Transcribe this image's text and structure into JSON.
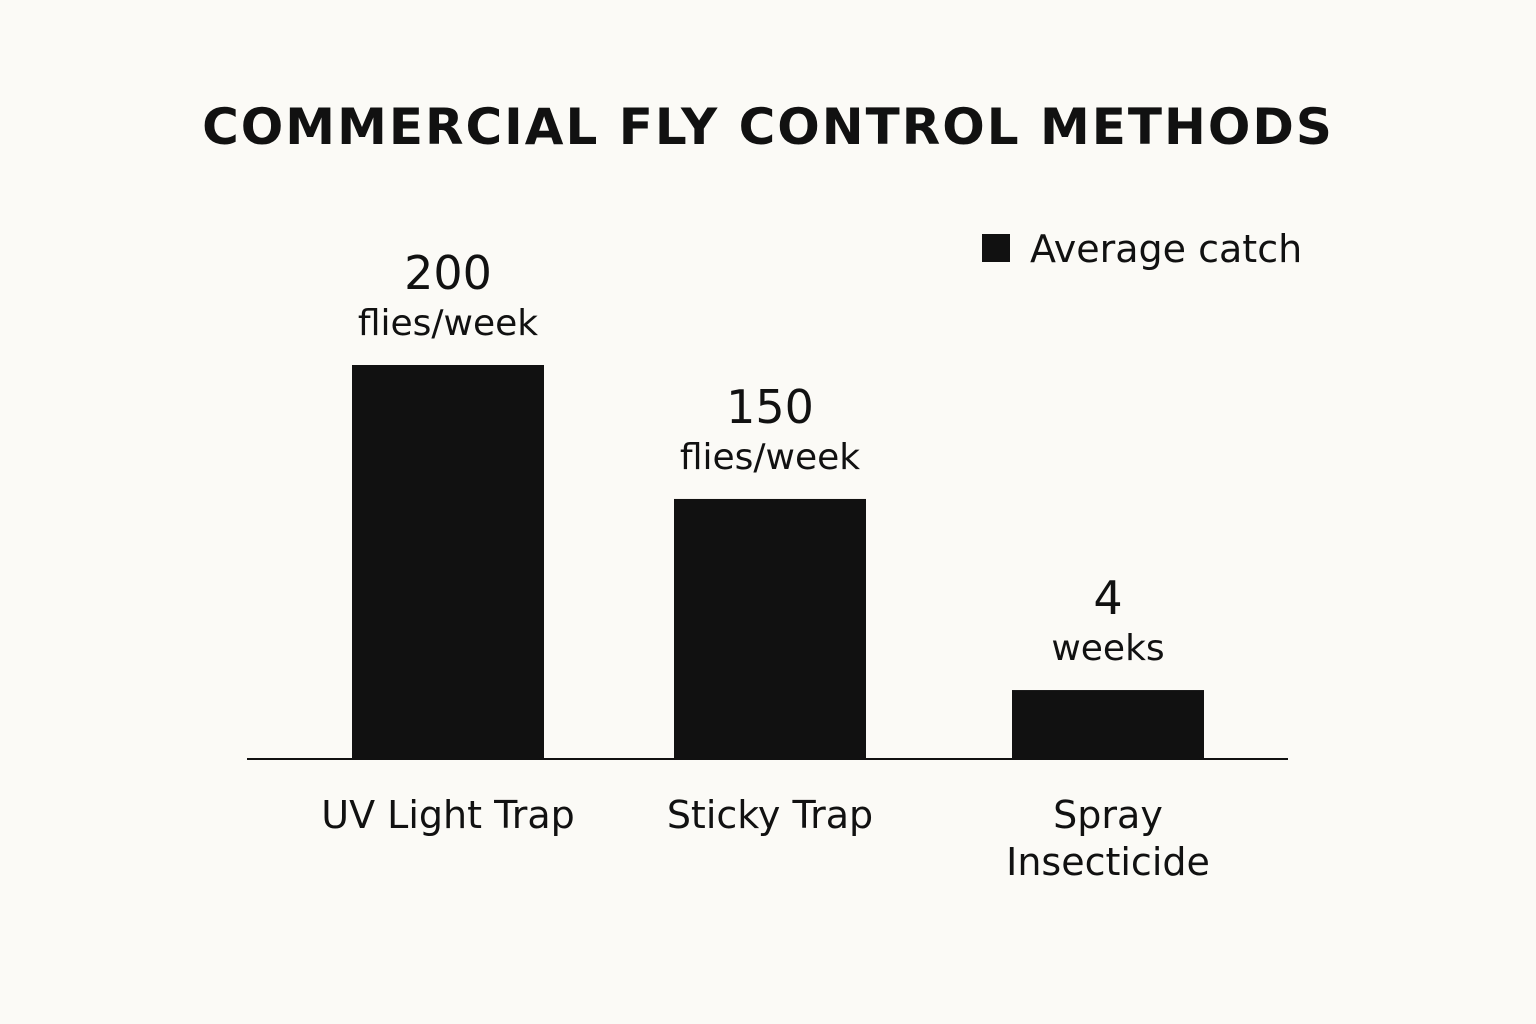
{
  "chart_data": {
    "type": "bar",
    "title": "COMMERCIAL FLY CONTROL METHODS",
    "legend": {
      "label": "Average catch",
      "position": "top-right"
    },
    "categories": [
      [
        "UV Light Trap"
      ],
      [
        "Sticky Trap"
      ],
      [
        "Spray",
        "Insecticide"
      ]
    ],
    "series": [
      {
        "name": "Average catch",
        "values": [
          200,
          150,
          4
        ],
        "display_values": [
          "200",
          "150",
          "4"
        ],
        "units": [
          "flies/week",
          "flies/week",
          "weeks"
        ]
      }
    ],
    "visual_heights": [
      200,
      132,
      35
    ],
    "ylim": [
      0,
      200
    ],
    "xlabel": "",
    "ylabel": "",
    "grid": false,
    "bar_color": "#111111",
    "text_color": "#111111",
    "background": "#fbfaf6"
  }
}
